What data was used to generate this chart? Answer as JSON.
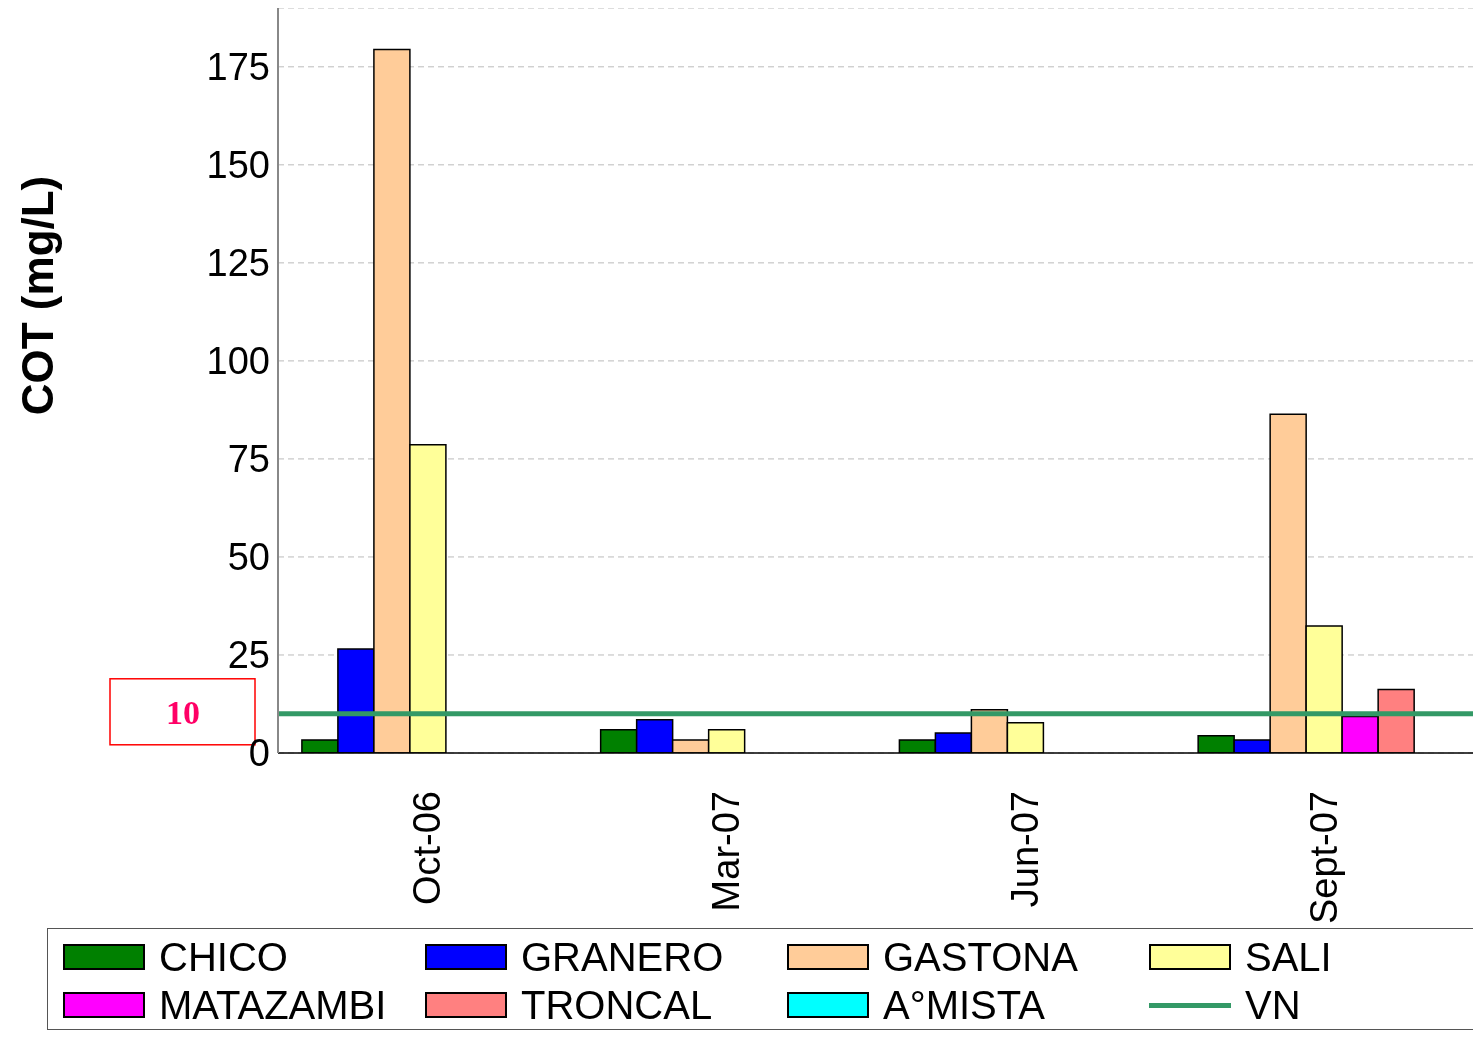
{
  "chart_data": {
    "type": "bar",
    "ylabel": "COT (mg/L)",
    "categories": [
      "Oct-06",
      "Mar-07",
      "Jun-07",
      "Sept-07"
    ],
    "series": [
      {
        "name": "CHICO",
        "color": "#008000",
        "values": [
          3.3,
          5.9,
          3.3,
          4.4
        ]
      },
      {
        "name": "GRANERO",
        "color": "#0000ff",
        "values": [
          26.5,
          8.5,
          5.1,
          3.3
        ]
      },
      {
        "name": "GASTONA",
        "color": "#ffcc99",
        "values": [
          179.4,
          3.3,
          11,
          86.4
        ]
      },
      {
        "name": "SALI",
        "color": "#ffff99",
        "values": [
          78.6,
          5.9,
          7.7,
          32.4
        ]
      },
      {
        "name": "MATAZAMBI",
        "color": "#ff00ff",
        "values": [
          null,
          null,
          null,
          9.3
        ]
      },
      {
        "name": "TRONCAL",
        "color": "#ff8080",
        "values": [
          null,
          null,
          null,
          16.2
        ]
      },
      {
        "name": "A°MISTA",
        "color": "#00ffff",
        "values": [
          null,
          null,
          null,
          null
        ]
      }
    ],
    "ref_lines": [
      {
        "axis": "y",
        "value": 10,
        "label": "VN",
        "color": "#339966"
      }
    ],
    "annotations": [
      "10"
    ],
    "ylim": [
      0,
      190
    ],
    "yticks": [
      0,
      25,
      50,
      75,
      100,
      125,
      150,
      175
    ],
    "grid": "y",
    "legend": "bottom"
  }
}
